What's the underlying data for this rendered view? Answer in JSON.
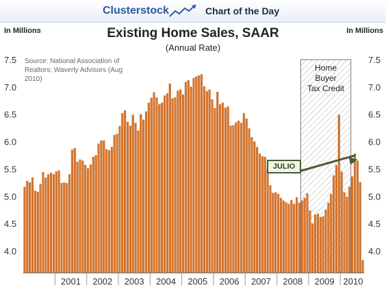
{
  "header": {
    "brand": "Clusterstock",
    "tagline": "Chart of the Day",
    "logo_icon": "line-chart-arrow-icon"
  },
  "colors": {
    "bar": "#d9762b",
    "bar_edge": "#b95a14",
    "shade_hatch": "#cfcfcf",
    "annotation_border": "#4a5a3a",
    "annotation_fill": "#eef5e4",
    "arrow": "#4a5a3a"
  },
  "chart_data": {
    "type": "bar",
    "title": "Existing Home Sales, SAAR",
    "subtitle": "(Annual Rate)",
    "ylabel_left": "In Millions",
    "ylabel_right": "In Millions",
    "source": "Source: National Association of Realtors; Waverly Advisors (Aug 2010)",
    "ylim": [
      3.6,
      7.5
    ],
    "yticks": [
      "7.5",
      "7.0",
      "6.5",
      "6.0",
      "5.5",
      "5.0",
      "4.5",
      "4.0"
    ],
    "ytick_values": [
      7.5,
      7.0,
      6.5,
      6.0,
      5.5,
      5.0,
      4.5,
      4.0
    ],
    "xticks": [
      "2001",
      "2002",
      "2003",
      "2004",
      "2005",
      "2006",
      "2007",
      "2008",
      "2009",
      "2010"
    ],
    "grid": false,
    "start": "2000-01",
    "frequency": "monthly",
    "values": [
      5.17,
      5.28,
      5.25,
      5.34,
      5.1,
      5.08,
      5.22,
      5.44,
      5.34,
      5.4,
      5.43,
      5.4,
      5.45,
      5.47,
      5.24,
      5.25,
      5.24,
      5.4,
      5.85,
      5.88,
      5.63,
      5.67,
      5.65,
      5.57,
      5.51,
      5.58,
      5.72,
      5.75,
      5.96,
      6.02,
      6.02,
      5.86,
      5.84,
      5.9,
      6.12,
      6.14,
      6.28,
      6.52,
      6.57,
      6.36,
      6.29,
      6.49,
      6.34,
      6.2,
      6.5,
      6.4,
      6.55,
      6.71,
      6.8,
      6.9,
      6.81,
      6.68,
      6.71,
      6.84,
      6.88,
      7.06,
      6.79,
      6.81,
      6.93,
      6.95,
      6.86,
      7.09,
      7.12,
      7.0,
      7.16,
      7.19,
      7.21,
      7.23,
      7.01,
      6.92,
      6.95,
      6.77,
      6.61,
      6.91,
      6.68,
      6.71,
      6.62,
      6.64,
      6.29,
      6.3,
      6.35,
      6.38,
      6.34,
      6.52,
      6.42,
      6.24,
      6.08,
      6.0,
      5.9,
      5.78,
      5.73,
      5.72,
      5.5,
      5.2,
      5.06,
      5.07,
      5.04,
      4.97,
      4.92,
      4.89,
      4.86,
      4.93,
      4.86,
      4.98,
      4.88,
      4.92,
      4.97,
      5.05,
      4.74,
      4.5,
      4.66,
      4.68,
      4.62,
      4.63,
      4.75,
      4.88,
      5.04,
      5.38,
      5.57,
      6.49,
      5.45,
      5.07,
      4.99,
      5.17,
      5.36,
      5.78,
      5.65,
      5.26,
      3.83
    ],
    "shaded_region": {
      "label": [
        "Home",
        "Buyer",
        "Tax Credit"
      ],
      "start": "2008-10",
      "end": "2010-04"
    },
    "annotation": {
      "text": "JULIO",
      "target": "2010-07"
    }
  }
}
